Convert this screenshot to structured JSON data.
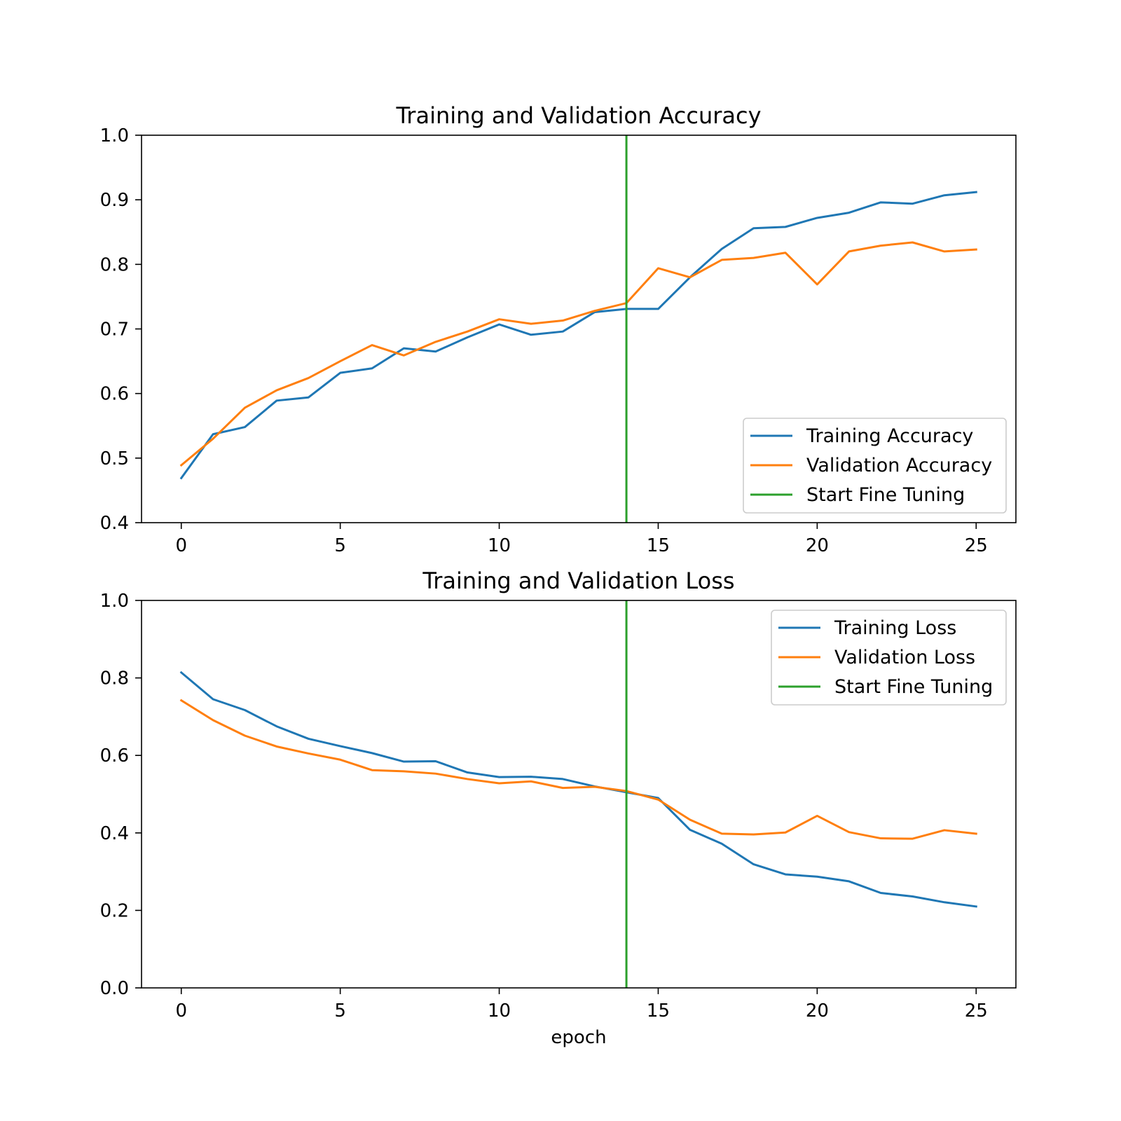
{
  "chart_data": [
    {
      "type": "line",
      "title": "Training and Validation Accuracy",
      "xlabel": "",
      "ylabel": "",
      "xlim": [
        -1.25,
        26.25
      ],
      "ylim": [
        0.4,
        1.0
      ],
      "xticks": [
        0,
        5,
        10,
        15,
        20,
        25
      ],
      "yticks": [
        0.4,
        0.5,
        0.6,
        0.7,
        0.8,
        0.9,
        1.0
      ],
      "tick_labels_x": [
        "0",
        "5",
        "10",
        "15",
        "20",
        "25"
      ],
      "tick_labels_y": [
        "0.4",
        "0.5",
        "0.6",
        "0.7",
        "0.8",
        "0.9",
        "1.0"
      ],
      "grid": false,
      "legend_position": "lower-right",
      "x": [
        0,
        1,
        2,
        3,
        4,
        5,
        6,
        7,
        8,
        9,
        10,
        11,
        12,
        13,
        14,
        15,
        16,
        17,
        18,
        19,
        20,
        21,
        22,
        23,
        24,
        25
      ],
      "series": [
        {
          "name": "Training Accuracy",
          "color": "#1f77b4",
          "values": [
            0.469,
            0.537,
            0.548,
            0.589,
            0.594,
            0.632,
            0.639,
            0.67,
            0.665,
            0.687,
            0.707,
            0.691,
            0.696,
            0.726,
            0.731,
            0.731,
            0.78,
            0.824,
            0.856,
            0.858,
            0.872,
            0.88,
            0.896,
            0.894,
            0.907,
            0.912
          ]
        },
        {
          "name": "Validation Accuracy",
          "color": "#ff7f0e",
          "values": [
            0.489,
            0.53,
            0.578,
            0.605,
            0.624,
            0.65,
            0.675,
            0.659,
            0.68,
            0.696,
            0.715,
            0.708,
            0.713,
            0.728,
            0.74,
            0.794,
            0.78,
            0.807,
            0.81,
            0.818,
            0.769,
            0.82,
            0.829,
            0.834,
            0.82,
            0.823
          ]
        }
      ],
      "vlines": [
        {
          "name": "Start Fine Tuning",
          "color": "#2ca02c",
          "x": 14
        }
      ]
    },
    {
      "type": "line",
      "title": "Training and Validation Loss",
      "xlabel": "epoch",
      "ylabel": "",
      "xlim": [
        -1.25,
        26.25
      ],
      "ylim": [
        0.0,
        1.0
      ],
      "xticks": [
        0,
        5,
        10,
        15,
        20,
        25
      ],
      "yticks": [
        0.0,
        0.2,
        0.4,
        0.6,
        0.8,
        1.0
      ],
      "tick_labels_x": [
        "0",
        "5",
        "10",
        "15",
        "20",
        "25"
      ],
      "tick_labels_y": [
        "0.0",
        "0.2",
        "0.4",
        "0.6",
        "0.8",
        "1.0"
      ],
      "grid": false,
      "legend_position": "upper-right",
      "x": [
        0,
        1,
        2,
        3,
        4,
        5,
        6,
        7,
        8,
        9,
        10,
        11,
        12,
        13,
        14,
        15,
        16,
        17,
        18,
        19,
        20,
        21,
        22,
        23,
        24,
        25
      ],
      "series": [
        {
          "name": "Training Loss",
          "color": "#1f77b4",
          "values": [
            0.814,
            0.745,
            0.717,
            0.675,
            0.643,
            0.624,
            0.606,
            0.584,
            0.585,
            0.556,
            0.544,
            0.545,
            0.539,
            0.52,
            0.505,
            0.49,
            0.408,
            0.372,
            0.319,
            0.293,
            0.287,
            0.275,
            0.245,
            0.236,
            0.221,
            0.21
          ]
        },
        {
          "name": "Validation Loss",
          "color": "#ff7f0e",
          "values": [
            0.742,
            0.691,
            0.651,
            0.623,
            0.605,
            0.589,
            0.562,
            0.559,
            0.553,
            0.539,
            0.528,
            0.533,
            0.516,
            0.519,
            0.508,
            0.486,
            0.434,
            0.398,
            0.396,
            0.401,
            0.444,
            0.402,
            0.386,
            0.385,
            0.407,
            0.398
          ]
        }
      ],
      "vlines": [
        {
          "name": "Start Fine Tuning",
          "color": "#2ca02c",
          "x": 14
        }
      ]
    }
  ]
}
